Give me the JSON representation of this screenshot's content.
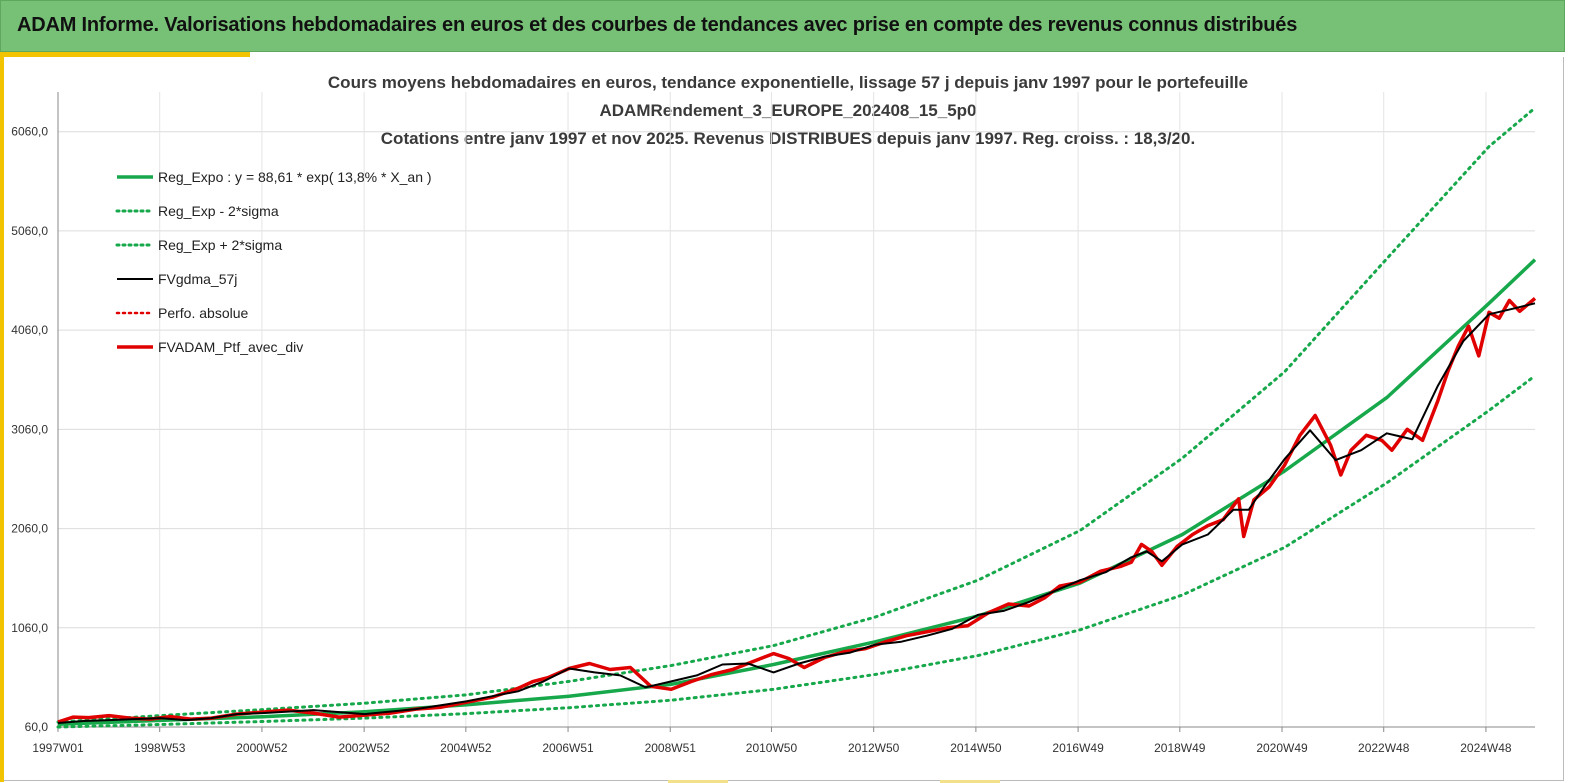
{
  "banner": {
    "title": "ADAM Informe. Valorisations hebdomadaires en euros et des courbes de tendances avec prise en compte des revenus connus distribués"
  },
  "colors": {
    "banner_bg": "#77c177",
    "accent": "#f2c300",
    "reg_expo": "#17a84b",
    "sigma": "#17a84b",
    "fvgdma": "#000000",
    "perfo": "#e00000",
    "fvadam": "#e00000"
  },
  "chart_data": {
    "type": "line",
    "title": [
      "Cours moyens hebdomadaires  en euros, tendance exponentielle, lissage 57 j depuis janv 1997 pour le portefeuille",
      "ADAMRendement_3_EUROPE_202408_15_5p0",
      "Cotations  entre janv 1997 et nov 2025. Revenus DISTRIBUES depuis janv 1997. Reg. croiss. : 18,3/20."
    ],
    "xlabel": "",
    "ylabel": "",
    "xlim": [
      1997.0,
      2025.9
    ],
    "ylim": [
      60,
      6460
    ],
    "y_ticks": [
      60,
      1060,
      2060,
      3060,
      4060,
      5060,
      6060
    ],
    "y_tick_labels": [
      "60,0",
      "1060,0",
      "2060,0",
      "3060,0",
      "4060,0",
      "5060,0",
      "6060,0"
    ],
    "x_ticks": [
      1997.0,
      1998.99,
      2000.99,
      2002.99,
      2004.98,
      2006.98,
      2008.98,
      2010.96,
      2012.96,
      2014.96,
      2016.96,
      2018.95,
      2020.95,
      2022.94,
      2024.94
    ],
    "x_tick_labels": [
      "1997W01",
      "1998W53",
      "2000W52",
      "2002W52",
      "2004W52",
      "2006W51",
      "2008W51",
      "2010W50",
      "2012W50",
      "2014W50",
      "2016W49",
      "2018W49",
      "2020W49",
      "2022W48",
      "2024W48"
    ],
    "legend": {
      "position": "top-left",
      "entries": [
        "Reg_Expo : y = 88,61 * exp( 13,8% *  X_an )",
        "Reg_Exp - 2*sigma",
        "Reg_Exp + 2*sigma",
        "FVgdma_57j",
        "Perfo. absolue",
        "FVADAM_Ptf_avec_div"
      ]
    },
    "series": [
      {
        "name": "Reg_Expo : y = 88,61 * exp( 13,8% *  X_an )",
        "style": "solid-green",
        "x": [
          1997,
          1999,
          2001,
          2003,
          2005,
          2007,
          2009,
          2011,
          2013,
          2015,
          2017,
          2019,
          2021,
          2023,
          2025,
          2025.9
        ],
        "y": [
          88.6,
          127,
          164,
          214,
          285,
          370,
          490,
          690,
          920,
          1180,
          1510,
          2000,
          2640,
          3380,
          4330,
          4770
        ]
      },
      {
        "name": "Reg_Exp - 2*sigma",
        "style": "dotted-green",
        "x": [
          1997,
          1999,
          2001,
          2003,
          2005,
          2007,
          2009,
          2011,
          2013,
          2015,
          2017,
          2019,
          2021,
          2023,
          2025,
          2025.9
        ],
        "y": [
          60,
          85,
          115,
          150,
          195,
          255,
          330,
          440,
          590,
          780,
          1040,
          1390,
          1870,
          2520,
          3250,
          3600
        ]
      },
      {
        "name": "Reg_Exp + 2*sigma",
        "style": "dotted-green",
        "x": [
          1997,
          1999,
          2001,
          2003,
          2005,
          2007,
          2009,
          2011,
          2013,
          2015,
          2017,
          2019,
          2021,
          2023,
          2025,
          2025.9
        ],
        "y": [
          110,
          175,
          235,
          300,
          385,
          520,
          680,
          880,
          1170,
          1540,
          2040,
          2770,
          3640,
          4780,
          5910,
          6300
        ]
      },
      {
        "name": "FVgdma_57j",
        "style": "solid-black",
        "x": [
          1997,
          1997.5,
          1998,
          1998.5,
          1999,
          1999.5,
          2000,
          2000.5,
          2001,
          2002,
          2003,
          2004,
          2005,
          2006,
          2006.5,
          2007,
          2007.5,
          2008,
          2008.5,
          2009,
          2009.5,
          2010,
          2010.5,
          2011,
          2011.5,
          2012,
          2012.5,
          2013,
          2013.5,
          2014,
          2014.5,
          2015,
          2015.5,
          2016,
          2016.5,
          2017,
          2017.5,
          2018,
          2018.3,
          2018.6,
          2019,
          2019.5,
          2020,
          2020.3,
          2020.6,
          2021,
          2021.5,
          2022,
          2022.5,
          2023,
          2023.5,
          2024,
          2024.5,
          2025,
          2025.5,
          2025.9
        ],
        "y": [
          100,
          120,
          130,
          140,
          150,
          130,
          150,
          190,
          200,
          230,
          190,
          240,
          320,
          420,
          520,
          650,
          610,
          580,
          460,
          520,
          580,
          690,
          700,
          610,
          700,
          770,
          810,
          890,
          920,
          980,
          1050,
          1190,
          1230,
          1320,
          1430,
          1540,
          1620,
          1770,
          1830,
          1730,
          1900,
          2000,
          2250,
          2250,
          2480,
          2760,
          3050,
          2750,
          2850,
          3020,
          2960,
          3500,
          3950,
          4220,
          4280,
          4330
        ]
      },
      {
        "name": "Perfo. absolue",
        "style": "dotted-red",
        "x": [
          1997,
          1999,
          2001,
          2003,
          2005,
          2007,
          2009,
          2011,
          2013,
          2015,
          2017,
          2019,
          2021,
          2023,
          2025,
          2025.9
        ],
        "y": [
          100,
          145,
          190,
          185,
          235,
          640,
          520,
          600,
          770,
          1050,
          1540,
          1900,
          2760,
          3020,
          4220,
          4330
        ]
      },
      {
        "name": "FVADAM_Ptf_avec_div",
        "style": "solid-red-thick",
        "x": [
          1997,
          1997.3,
          1997.6,
          1998,
          1998.4,
          1998.8,
          1999.2,
          1999.6,
          2000,
          2000.5,
          2001,
          2001.5,
          2002,
          2002.5,
          2003,
          2003.5,
          2004,
          2004.5,
          2005,
          2005.5,
          2006,
          2006.3,
          2006.6,
          2007,
          2007.4,
          2007.8,
          2008.2,
          2008.6,
          2009,
          2009.4,
          2009.8,
          2010.2,
          2010.6,
          2011,
          2011.3,
          2011.6,
          2012,
          2012.4,
          2012.8,
          2013.2,
          2013.6,
          2014,
          2014.4,
          2014.8,
          2015.2,
          2015.6,
          2016,
          2016.3,
          2016.6,
          2017,
          2017.4,
          2017.8,
          2018,
          2018.2,
          2018.4,
          2018.6,
          2018.9,
          2019.2,
          2019.5,
          2019.8,
          2020.1,
          2020.2,
          2020.4,
          2020.7,
          2021,
          2021.3,
          2021.6,
          2021.9,
          2022.1,
          2022.3,
          2022.6,
          2022.9,
          2023.1,
          2023.4,
          2023.7,
          2024,
          2024.2,
          2024.4,
          2024.6,
          2024.8,
          2025,
          2025.2,
          2025.4,
          2025.6,
          2025.9
        ],
        "y": [
          110,
          160,
          155,
          175,
          150,
          140,
          165,
          140,
          150,
          190,
          210,
          230,
          200,
          160,
          180,
          200,
          240,
          260,
          310,
          360,
          450,
          520,
          560,
          650,
          700,
          640,
          660,
          470,
          440,
          520,
          590,
          640,
          720,
          800,
          750,
          660,
          760,
          820,
          850,
          920,
          980,
          1020,
          1060,
          1080,
          1210,
          1300,
          1280,
          1360,
          1480,
          1520,
          1630,
          1680,
          1720,
          1900,
          1830,
          1690,
          1880,
          2000,
          2090,
          2150,
          2360,
          1980,
          2350,
          2480,
          2700,
          3000,
          3200,
          2900,
          2600,
          2850,
          3000,
          2950,
          2850,
          3060,
          2950,
          3350,
          3650,
          3900,
          4100,
          3800,
          4240,
          4180,
          4360,
          4250,
          4380
        ]
      }
    ]
  }
}
